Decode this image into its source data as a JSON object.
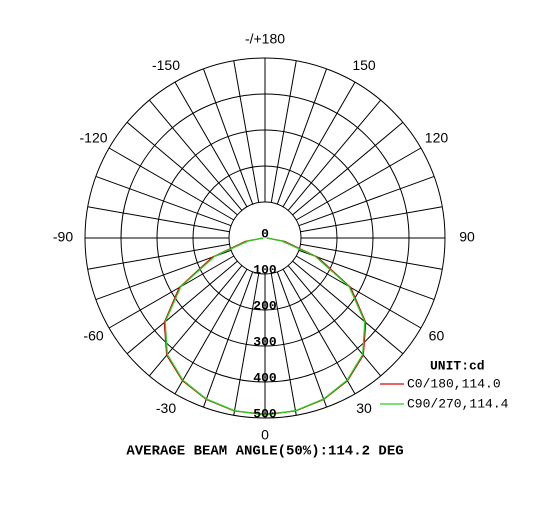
{
  "chart_data": {
    "type": "polar",
    "unit_label": "UNIT:cd",
    "footer": "AVERAGE BEAM ANGLE(50%):114.2 DEG",
    "rlim": [
      0,
      500
    ],
    "rticks": [
      0,
      100,
      200,
      300,
      400,
      500
    ],
    "angle_ticks": [
      0,
      30,
      60,
      90,
      120,
      150,
      {
        "value": 180,
        "label": "-/+180"
      },
      -30,
      -60,
      -90,
      -120,
      -150
    ],
    "x": [
      -90,
      -80,
      -70,
      -60,
      -50,
      -40,
      -30,
      -20,
      -10,
      0,
      10,
      20,
      30,
      40,
      50,
      60,
      70,
      80,
      90
    ],
    "series": [
      {
        "name": "C0/180,114.0",
        "color": "#e00000",
        "values": [
          5,
          55,
          155,
          275,
          365,
          425,
          458,
          477,
          488,
          490,
          488,
          477,
          458,
          425,
          365,
          275,
          155,
          55,
          5
        ]
      },
      {
        "name": "C90/270,114.4",
        "color": "#20d020",
        "values": [
          5,
          48,
          148,
          270,
          362,
          422,
          456,
          476,
          487,
          492,
          487,
          476,
          456,
          422,
          362,
          270,
          148,
          48,
          5
        ]
      }
    ]
  }
}
